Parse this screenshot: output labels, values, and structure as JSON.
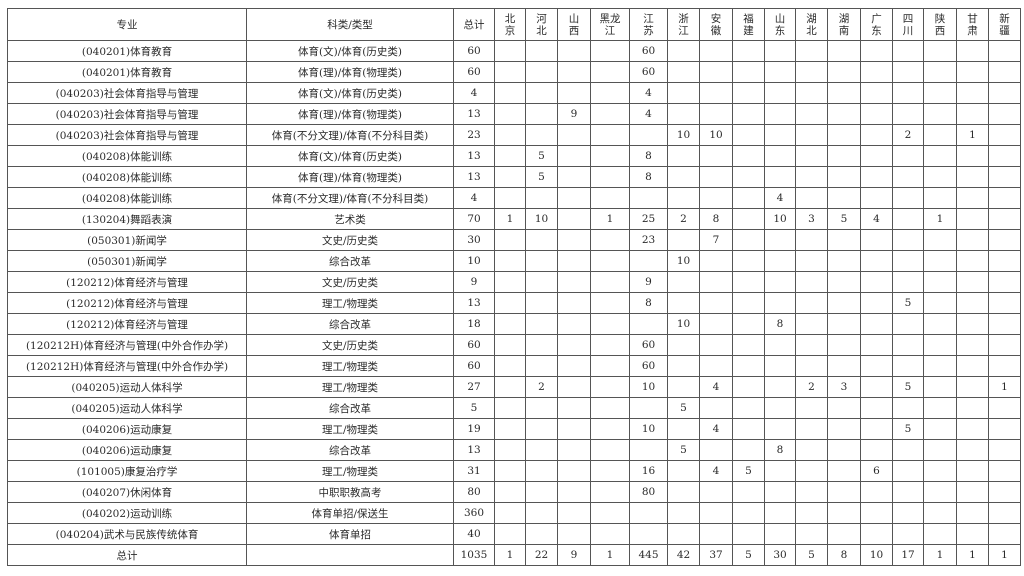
{
  "header": {
    "major": "专业",
    "category": "科类/类型",
    "total": "总计",
    "provinces": [
      "北京",
      "河北",
      "山西",
      "黑龙江",
      "江苏",
      "浙江",
      "安徽",
      "福建",
      "山东",
      "湖北",
      "湖南",
      "广东",
      "四川",
      "陕西",
      "甘肃",
      "新疆"
    ]
  },
  "rows": [
    {
      "major": "(040201)体育教育",
      "category": "体育(文)/体育(历史类)",
      "total": "60",
      "cells": [
        "",
        "",
        "",
        "",
        "60",
        "",
        "",
        "",
        "",
        "",
        "",
        "",
        "",
        "",
        "",
        ""
      ]
    },
    {
      "major": "(040201)体育教育",
      "category": "体育(理)/体育(物理类)",
      "total": "60",
      "cells": [
        "",
        "",
        "",
        "",
        "60",
        "",
        "",
        "",
        "",
        "",
        "",
        "",
        "",
        "",
        "",
        ""
      ]
    },
    {
      "major": "(040203)社会体育指导与管理",
      "category": "体育(文)/体育(历史类)",
      "total": "4",
      "cells": [
        "",
        "",
        "",
        "",
        "4",
        "",
        "",
        "",
        "",
        "",
        "",
        "",
        "",
        "",
        "",
        ""
      ]
    },
    {
      "major": "(040203)社会体育指导与管理",
      "category": "体育(理)/体育(物理类)",
      "total": "13",
      "cells": [
        "",
        "",
        "9",
        "",
        "4",
        "",
        "",
        "",
        "",
        "",
        "",
        "",
        "",
        "",
        "",
        ""
      ]
    },
    {
      "major": "(040203)社会体育指导与管理",
      "category": "体育(不分文理)/体育(不分科目类)",
      "total": "23",
      "cells": [
        "",
        "",
        "",
        "",
        "",
        "10",
        "10",
        "",
        "",
        "",
        "",
        "",
        "2",
        "",
        "1",
        ""
      ]
    },
    {
      "major": "(040208)体能训练",
      "category": "体育(文)/体育(历史类)",
      "total": "13",
      "cells": [
        "",
        "5",
        "",
        "",
        "8",
        "",
        "",
        "",
        "",
        "",
        "",
        "",
        "",
        "",
        "",
        ""
      ]
    },
    {
      "major": "(040208)体能训练",
      "category": "体育(理)/体育(物理类)",
      "total": "13",
      "cells": [
        "",
        "5",
        "",
        "",
        "8",
        "",
        "",
        "",
        "",
        "",
        "",
        "",
        "",
        "",
        "",
        ""
      ]
    },
    {
      "major": "(040208)体能训练",
      "category": "体育(不分文理)/体育(不分科目类)",
      "total": "4",
      "cells": [
        "",
        "",
        "",
        "",
        "",
        "",
        "",
        "",
        "4",
        "",
        "",
        "",
        "",
        "",
        "",
        ""
      ]
    },
    {
      "major": "(130204)舞蹈表演",
      "category": "艺术类",
      "total": "70",
      "cells": [
        "1",
        "10",
        "",
        "1",
        "25",
        "2",
        "8",
        "",
        "10",
        "3",
        "5",
        "4",
        "",
        "1",
        "",
        ""
      ]
    },
    {
      "major": "(050301)新闻学",
      "category": "文史/历史类",
      "total": "30",
      "cells": [
        "",
        "",
        "",
        "",
        "23",
        "",
        "7",
        "",
        "",
        "",
        "",
        "",
        "",
        "",
        "",
        ""
      ]
    },
    {
      "major": "(050301)新闻学",
      "category": "综合改革",
      "total": "10",
      "cells": [
        "",
        "",
        "",
        "",
        "",
        "10",
        "",
        "",
        "",
        "",
        "",
        "",
        "",
        "",
        "",
        ""
      ]
    },
    {
      "major": "(120212)体育经济与管理",
      "category": "文史/历史类",
      "total": "9",
      "cells": [
        "",
        "",
        "",
        "",
        "9",
        "",
        "",
        "",
        "",
        "",
        "",
        "",
        "",
        "",
        "",
        ""
      ]
    },
    {
      "major": "(120212)体育经济与管理",
      "category": "理工/物理类",
      "total": "13",
      "cells": [
        "",
        "",
        "",
        "",
        "8",
        "",
        "",
        "",
        "",
        "",
        "",
        "",
        "5",
        "",
        "",
        ""
      ]
    },
    {
      "major": "(120212)体育经济与管理",
      "category": "综合改革",
      "total": "18",
      "cells": [
        "",
        "",
        "",
        "",
        "",
        "10",
        "",
        "",
        "8",
        "",
        "",
        "",
        "",
        "",
        "",
        ""
      ]
    },
    {
      "major": "(120212H)体育经济与管理(中外合作办学)",
      "category": "文史/历史类",
      "total": "60",
      "cells": [
        "",
        "",
        "",
        "",
        "60",
        "",
        "",
        "",
        "",
        "",
        "",
        "",
        "",
        "",
        "",
        ""
      ]
    },
    {
      "major": "(120212H)体育经济与管理(中外合作办学)",
      "category": "理工/物理类",
      "total": "60",
      "cells": [
        "",
        "",
        "",
        "",
        "60",
        "",
        "",
        "",
        "",
        "",
        "",
        "",
        "",
        "",
        "",
        ""
      ]
    },
    {
      "major": "(040205)运动人体科学",
      "category": "理工/物理类",
      "total": "27",
      "cells": [
        "",
        "2",
        "",
        "",
        "10",
        "",
        "4",
        "",
        "",
        "2",
        "3",
        "",
        "5",
        "",
        "",
        "1"
      ]
    },
    {
      "major": "(040205)运动人体科学",
      "category": "综合改革",
      "total": "5",
      "cells": [
        "",
        "",
        "",
        "",
        "",
        "5",
        "",
        "",
        "",
        "",
        "",
        "",
        "",
        "",
        "",
        ""
      ]
    },
    {
      "major": "(040206)运动康复",
      "category": "理工/物理类",
      "total": "19",
      "cells": [
        "",
        "",
        "",
        "",
        "10",
        "",
        "4",
        "",
        "",
        "",
        "",
        "",
        "5",
        "",
        "",
        ""
      ]
    },
    {
      "major": "(040206)运动康复",
      "category": "综合改革",
      "total": "13",
      "cells": [
        "",
        "",
        "",
        "",
        "",
        "5",
        "",
        "",
        "8",
        "",
        "",
        "",
        "",
        "",
        "",
        ""
      ]
    },
    {
      "major": "(101005)康复治疗学",
      "category": "理工/物理类",
      "total": "31",
      "cells": [
        "",
        "",
        "",
        "",
        "16",
        "",
        "4",
        "5",
        "",
        "",
        "",
        "6",
        "",
        "",
        "",
        ""
      ]
    },
    {
      "major": "(040207)休闲体育",
      "category": "中职职教高考",
      "total": "80",
      "cells": [
        "",
        "",
        "",
        "",
        "80",
        "",
        "",
        "",
        "",
        "",
        "",
        "",
        "",
        "",
        "",
        ""
      ]
    },
    {
      "major": "(040202)运动训练",
      "category": "体育单招/保送生",
      "total": "360",
      "cells": [
        "",
        "",
        "",
        "",
        "",
        "",
        "",
        "",
        "",
        "",
        "",
        "",
        "",
        "",
        "",
        ""
      ]
    },
    {
      "major": "(040204)武术与民族传统体育",
      "category": "体育单招",
      "total": "40",
      "cells": [
        "",
        "",
        "",
        "",
        "",
        "",
        "",
        "",
        "",
        "",
        "",
        "",
        "",
        "",
        "",
        ""
      ]
    }
  ],
  "totals": {
    "label": "总计",
    "category": "",
    "total": "1035",
    "cells": [
      "1",
      "22",
      "9",
      "1",
      "445",
      "42",
      "37",
      "5",
      "30",
      "5",
      "8",
      "10",
      "17",
      "1",
      "1",
      "1"
    ]
  }
}
